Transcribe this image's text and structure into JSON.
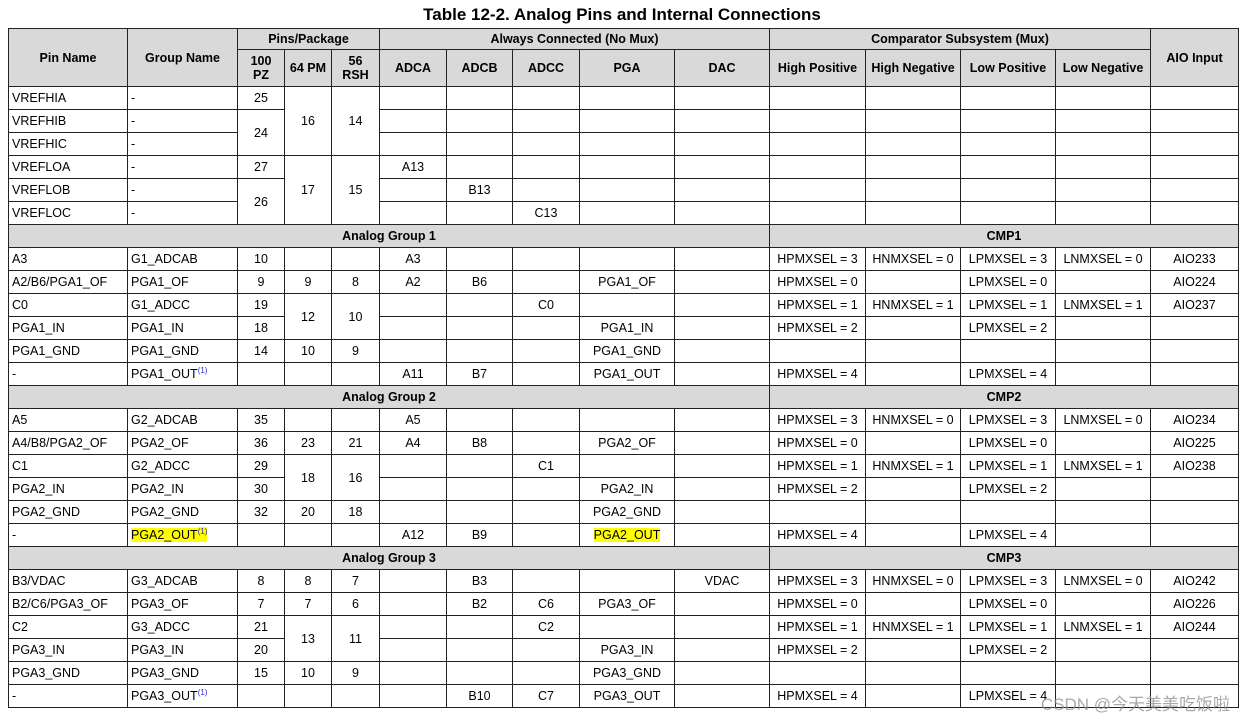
{
  "title": "Table 12-2. Analog Pins and Internal Connections",
  "header": {
    "pin_name": "Pin Name",
    "group_name": "Group Name",
    "pins_package": "Pins/Package",
    "always_connected": "Always Connected (No Mux)",
    "comparator": "Comparator Subsystem (Mux)",
    "aio_input": "AIO Input",
    "packages": [
      "100 PZ",
      "64 PM",
      "56 RSH"
    ],
    "always_cols": [
      "ADCA",
      "ADCB",
      "ADCC",
      "PGA",
      "DAC"
    ],
    "cmp_cols": [
      "High Positive",
      "High Negative",
      "Low Positive",
      "Low Negative"
    ]
  },
  "rows": [
    [
      "VREFHIA",
      "-",
      "25",
      "16",
      "14",
      "",
      "",
      "",
      "",
      "",
      "",
      "",
      "",
      "",
      ""
    ],
    [
      "VREFHIB",
      "-",
      "24",
      null,
      null,
      "",
      "",
      "",
      "",
      "",
      "",
      "",
      "",
      "",
      ""
    ],
    [
      "VREFHIC",
      "-",
      null,
      null,
      null,
      "",
      "",
      "",
      "",
      "",
      "",
      "",
      "",
      "",
      ""
    ],
    [
      "VREFLOA",
      "-",
      "27",
      "17",
      "15",
      "A13",
      "",
      "",
      "",
      "",
      "",
      "",
      "",
      "",
      ""
    ],
    [
      "VREFLOB",
      "-",
      "26",
      null,
      null,
      "",
      "B13",
      "",
      "",
      "",
      "",
      "",
      "",
      "",
      ""
    ],
    [
      "VREFLOC",
      "-",
      null,
      null,
      null,
      "",
      "",
      "C13",
      "",
      "",
      "",
      "",
      "",
      "",
      ""
    ],
    {
      "group": "Analog Group 1",
      "cmp": "CMP1"
    },
    [
      "A3",
      "G1_ADCAB",
      "10",
      "",
      "",
      "A3",
      "",
      "",
      "",
      "",
      "HPMXSEL = 3",
      "HNMXSEL = 0",
      "LPMXSEL = 3",
      "LNMXSEL = 0",
      "AIO233"
    ],
    [
      "A2/B6/PGA1_OF",
      "PGA1_OF",
      "9",
      "9",
      "8",
      "A2",
      "B6",
      "",
      "PGA1_OF",
      "",
      "HPMXSEL = 0",
      "",
      "LPMXSEL = 0",
      "",
      "AIO224"
    ],
    [
      "C0",
      "G1_ADCC",
      "19",
      "12",
      "10",
      "",
      "",
      "C0",
      "",
      "",
      "HPMXSEL = 1",
      "HNMXSEL = 1",
      "LPMXSEL = 1",
      "LNMXSEL = 1",
      "AIO237"
    ],
    [
      "PGA1_IN",
      "PGA1_IN",
      "18",
      null,
      null,
      "",
      "",
      "",
      "PGA1_IN",
      "",
      "HPMXSEL = 2",
      "",
      "LPMXSEL = 2",
      "",
      ""
    ],
    [
      "PGA1_GND",
      "PGA1_GND",
      "14",
      "10",
      "9",
      "",
      "",
      "",
      "PGA1_GND",
      "",
      "",
      "",
      "",
      "",
      ""
    ],
    [
      "-",
      {
        "text": "PGA1_OUT",
        "sup": "(1)"
      },
      "",
      "",
      "",
      "A11",
      "B7",
      "",
      "PGA1_OUT",
      "",
      "HPMXSEL = 4",
      "",
      "LPMXSEL = 4",
      "",
      ""
    ],
    {
      "group": "Analog Group 2",
      "cmp": "CMP2"
    },
    [
      "A5",
      "G2_ADCAB",
      "35",
      "",
      "",
      "A5",
      "",
      "",
      "",
      "",
      "HPMXSEL = 3",
      "HNMXSEL = 0",
      "LPMXSEL = 3",
      "LNMXSEL = 0",
      "AIO234"
    ],
    [
      "A4/B8/PGA2_OF",
      "PGA2_OF",
      "36",
      "23",
      "21",
      "A4",
      "B8",
      "",
      "PGA2_OF",
      "",
      "HPMXSEL = 0",
      "",
      "LPMXSEL = 0",
      "",
      "AIO225"
    ],
    [
      "C1",
      "G2_ADCC",
      "29",
      "18",
      "16",
      "",
      "",
      "C1",
      "",
      "",
      "HPMXSEL = 1",
      "HNMXSEL = 1",
      "LPMXSEL = 1",
      "LNMXSEL = 1",
      "AIO238"
    ],
    [
      "PGA2_IN",
      "PGA2_IN",
      "30",
      null,
      null,
      "",
      "",
      "",
      "PGA2_IN",
      "",
      "HPMXSEL = 2",
      "",
      "LPMXSEL = 2",
      "",
      ""
    ],
    [
      "PGA2_GND",
      "PGA2_GND",
      "32",
      "20",
      "18",
      "",
      "",
      "",
      "PGA2_GND",
      "",
      "",
      "",
      "",
      "",
      ""
    ],
    [
      "-",
      {
        "text": "PGA2_OUT",
        "sup": "(1)",
        "highlight": true
      },
      "",
      "",
      "",
      "A12",
      "B9",
      "",
      {
        "text": "PGA2_OUT",
        "highlight": true
      },
      "",
      "HPMXSEL = 4",
      "",
      "LPMXSEL = 4",
      "",
      ""
    ],
    {
      "group": "Analog Group 3",
      "cmp": "CMP3"
    },
    [
      "B3/VDAC",
      "G3_ADCAB",
      "8",
      "8",
      "7",
      "",
      "B3",
      "",
      "",
      "VDAC",
      "HPMXSEL = 3",
      "HNMXSEL = 0",
      "LPMXSEL = 3",
      "LNMXSEL = 0",
      "AIO242"
    ],
    [
      "B2/C6/PGA3_OF",
      "PGA3_OF",
      "7",
      "7",
      "6",
      "",
      "B2",
      "C6",
      "PGA3_OF",
      "",
      "HPMXSEL = 0",
      "",
      "LPMXSEL = 0",
      "",
      "AIO226"
    ],
    [
      "C2",
      "G3_ADCC",
      "21",
      "13",
      "11",
      "",
      "",
      "C2",
      "",
      "",
      "HPMXSEL = 1",
      "HNMXSEL = 1",
      "LPMXSEL = 1",
      "LNMXSEL = 1",
      "AIO244"
    ],
    [
      "PGA3_IN",
      "PGA3_IN",
      "20",
      null,
      null,
      "",
      "",
      "",
      "PGA3_IN",
      "",
      "HPMXSEL = 2",
      "",
      "LPMXSEL = 2",
      "",
      ""
    ],
    [
      "PGA3_GND",
      "PGA3_GND",
      "15",
      "10",
      "9",
      "",
      "",
      "",
      "PGA3_GND",
      "",
      "",
      "",
      "",
      "",
      ""
    ],
    [
      "-",
      {
        "text": "PGA3_OUT",
        "sup": "(1)"
      },
      "",
      "",
      "",
      "",
      "B10",
      "C7",
      "PGA3_OUT",
      "",
      "HPMXSEL = 4",
      "",
      "LPMXSEL = 4",
      "",
      ""
    ]
  ],
  "highlight_color": "#ffff00",
  "header_bg": "#d9d9d9",
  "watermark": "CSDN @今天美美吃饭啦"
}
